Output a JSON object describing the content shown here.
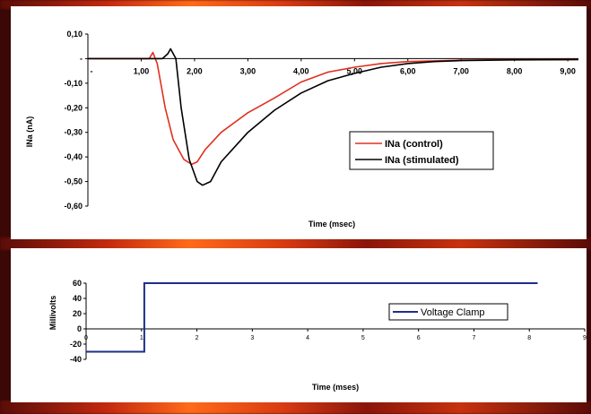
{
  "chart_data": [
    {
      "type": "line",
      "title": "",
      "xlabel": "Time (msec)",
      "ylabel": "INa (nA)",
      "xlim": [
        0,
        9.2
      ],
      "ylim": [
        -0.6,
        0.1
      ],
      "x_ticks": [
        "1,00",
        "2,00",
        "3,00",
        "4,00",
        "5,00",
        "6,00",
        "7,00",
        "8,00",
        "9,00"
      ],
      "x_tick_values": [
        1,
        2,
        3,
        4,
        5,
        6,
        7,
        8,
        9
      ],
      "y_ticks": [
        "0,10",
        "-",
        "-0,10",
        "-0,20",
        "-0,30",
        "-0,40",
        "-0,50",
        "-0,60"
      ],
      "y_tick_values": [
        0.1,
        0,
        -0.1,
        -0.2,
        -0.3,
        -0.4,
        -0.5,
        -0.6
      ],
      "origin_x_label": "-",
      "legend_position": "center-right",
      "series": [
        {
          "name": "INa (control)",
          "color": "#e0301e",
          "x": [
            0,
            0.5,
            1.0,
            1.15,
            1.22,
            1.3,
            1.35,
            1.45,
            1.6,
            1.8,
            1.95,
            2.05,
            2.2,
            2.5,
            3.0,
            3.5,
            4.0,
            4.5,
            5.0,
            5.5,
            6.0,
            7.0,
            8.0,
            9.2
          ],
          "y": [
            0.0,
            0.0,
            0.0,
            0.0,
            0.025,
            -0.02,
            -0.08,
            -0.2,
            -0.33,
            -0.41,
            -0.43,
            -0.42,
            -0.37,
            -0.3,
            -0.22,
            -0.16,
            -0.095,
            -0.055,
            -0.035,
            -0.02,
            -0.012,
            -0.006,
            -0.004,
            -0.003
          ]
        },
        {
          "name": "INa (stimulated)",
          "color": "#000000",
          "x": [
            0,
            0.5,
            1.0,
            1.4,
            1.5,
            1.55,
            1.65,
            1.75,
            1.9,
            2.05,
            2.15,
            2.3,
            2.5,
            3.0,
            3.5,
            4.0,
            4.5,
            5.0,
            5.5,
            6.0,
            6.5,
            7.0,
            8.0,
            9.2
          ],
          "y": [
            0.0,
            0.0,
            0.0,
            0.0,
            0.02,
            0.04,
            0.0,
            -0.2,
            -0.41,
            -0.5,
            -0.515,
            -0.5,
            -0.42,
            -0.3,
            -0.21,
            -0.14,
            -0.09,
            -0.06,
            -0.035,
            -0.02,
            -0.012,
            -0.008,
            -0.005,
            -0.004
          ]
        }
      ]
    },
    {
      "type": "line",
      "title": "",
      "xlabel": "Time (mses)",
      "ylabel": "Millivolts",
      "xlim": [
        0,
        9
      ],
      "ylim": [
        -40,
        60
      ],
      "x_ticks": [
        "1",
        "2",
        "3",
        "4",
        "5",
        "6",
        "7",
        "8",
        "9"
      ],
      "x_tick_values": [
        1,
        2,
        3,
        4,
        5,
        6,
        7,
        8,
        9
      ],
      "origin_x_label": "0",
      "y_ticks": [
        "60",
        "40",
        "20",
        "0",
        "-20",
        "-40"
      ],
      "y_tick_values": [
        60,
        40,
        20,
        0,
        -20,
        -40
      ],
      "legend_position": "right",
      "series": [
        {
          "name": "Voltage Clamp",
          "color": "#1e2e8a",
          "x": [
            0,
            1.05,
            1.05,
            8.15
          ],
          "y": [
            -30,
            -30,
            60,
            60
          ]
        }
      ]
    }
  ]
}
